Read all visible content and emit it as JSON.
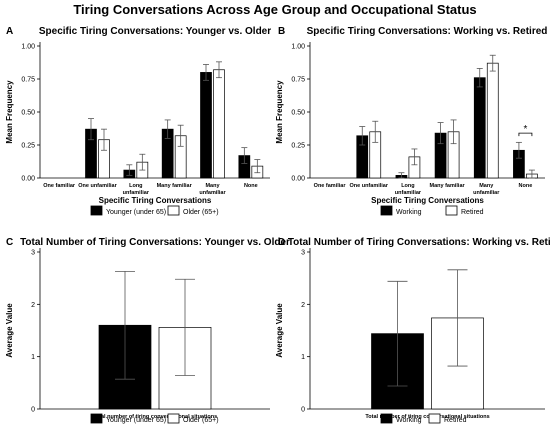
{
  "figure_title": "Tiring Conversations Across Age Group and Occupational Status",
  "chart_data": [
    {
      "panel_letter": "A",
      "type": "bar",
      "title": "Specific Tiring Conversations: Younger vs. Older",
      "xlabel": "Specific Tiring Conversations",
      "ylabel": "Mean Frequency",
      "ylim": [
        0,
        1
      ],
      "yticks": [
        "0.00",
        "0.25",
        "0.50",
        "0.75",
        "1.00"
      ],
      "categories": [
        "One familiar",
        "One unfamiliar",
        "Long unfamiliar",
        "Many familiar",
        "Many unfamiliar",
        "None"
      ],
      "series": [
        {
          "name": "Younger (under 65)",
          "color": "#000000",
          "values": [
            0.0,
            0.37,
            0.06,
            0.37,
            0.8,
            0.17
          ],
          "err": [
            0.0,
            0.08,
            0.04,
            0.07,
            0.06,
            0.06
          ]
        },
        {
          "name": "Older (65+)",
          "color": "#ffffff",
          "values": [
            0.0,
            0.29,
            0.12,
            0.32,
            0.82,
            0.09
          ],
          "err": [
            0.0,
            0.08,
            0.06,
            0.08,
            0.06,
            0.05
          ]
        }
      ],
      "annotations": []
    },
    {
      "panel_letter": "B",
      "type": "bar",
      "title": "Specific Tiring Conversations: Working vs. Retired",
      "xlabel": "Specific Tiring Conversations",
      "ylabel": "Mean Frequency",
      "ylim": [
        0,
        1
      ],
      "yticks": [
        "0.00",
        "0.25",
        "0.50",
        "0.75",
        "1.00"
      ],
      "categories": [
        "One familiar",
        "One unfamiliar",
        "Long unfamiliar",
        "Many familiar",
        "Many unfamiliar",
        "None"
      ],
      "series": [
        {
          "name": "Working",
          "color": "#000000",
          "values": [
            0.0,
            0.32,
            0.02,
            0.34,
            0.76,
            0.21
          ],
          "err": [
            0.0,
            0.07,
            0.02,
            0.08,
            0.07,
            0.06
          ]
        },
        {
          "name": "Retired",
          "color": "#ffffff",
          "values": [
            0.0,
            0.35,
            0.16,
            0.35,
            0.87,
            0.03
          ],
          "err": [
            0.0,
            0.08,
            0.06,
            0.09,
            0.06,
            0.03
          ]
        }
      ],
      "annotations": [
        {
          "text": "*",
          "category": "None"
        }
      ]
    },
    {
      "panel_letter": "C",
      "type": "bar",
      "title": "Total Number of Tiring Conversations: Younger vs. Older",
      "xlabel": "",
      "ylabel": "Average Value",
      "ylim": [
        0,
        3
      ],
      "yticks": [
        "0",
        "1",
        "2",
        "3"
      ],
      "categories": [
        "Total number of tiring conversational situations"
      ],
      "series": [
        {
          "name": "Younger (under 65)",
          "color": "#000000",
          "values": [
            1.6
          ],
          "err": [
            1.03
          ]
        },
        {
          "name": "Older (65+)",
          "color": "#ffffff",
          "values": [
            1.56
          ],
          "err": [
            0.92
          ]
        }
      ],
      "annotations": []
    },
    {
      "panel_letter": "D",
      "type": "bar",
      "title": "Total Number of Tiring Conversations: Working vs. Retired",
      "xlabel": "",
      "ylabel": "Average Value",
      "ylim": [
        0,
        3
      ],
      "yticks": [
        "0",
        "1",
        "2",
        "3"
      ],
      "categories": [
        "Total number of tiring conversational situations"
      ],
      "series": [
        {
          "name": "Working",
          "color": "#000000",
          "values": [
            1.44
          ],
          "err": [
            1.0
          ]
        },
        {
          "name": "Retired",
          "color": "#ffffff",
          "values": [
            1.74
          ],
          "err": [
            0.92
          ]
        }
      ],
      "annotations": []
    }
  ]
}
